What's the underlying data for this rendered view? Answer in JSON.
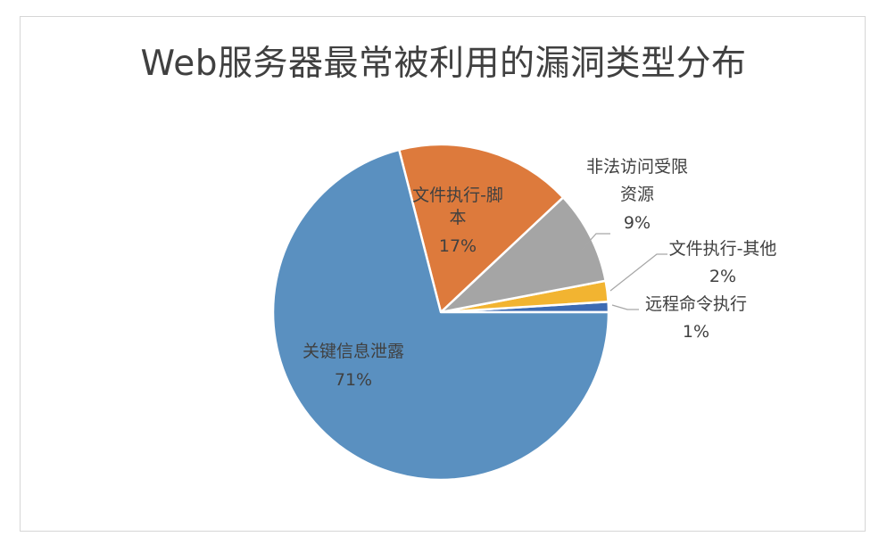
{
  "chart_data": {
    "type": "pie",
    "title": "Web服务器最常被利用的漏洞类型分布",
    "slices": [
      {
        "category": "文件执行-脚本",
        "label_lines": [
          "文件执行-脚",
          "本"
        ],
        "value": 17,
        "value_label": "17%",
        "color": "#dd7a3c"
      },
      {
        "category": "非法访问受限资源",
        "label_lines": [
          "非法访问受限",
          "资源"
        ],
        "value": 9,
        "value_label": "9%",
        "color": "#a5a5a5"
      },
      {
        "category": "文件执行-其他",
        "label_lines": [
          "文件执行-其他"
        ],
        "value": 2,
        "value_label": "2%",
        "color": "#f2b431"
      },
      {
        "category": "远程命令执行",
        "label_lines": [
          "远程命令执行"
        ],
        "value": 1,
        "value_label": "1%",
        "color": "#3d6bb3"
      },
      {
        "category": "关键信息泄露",
        "label_lines": [
          "关键信息泄露"
        ],
        "value": 71,
        "value_label": "71%",
        "color": "#5a90c0"
      }
    ],
    "legend": "none",
    "data_labels": "category-and-percent"
  }
}
